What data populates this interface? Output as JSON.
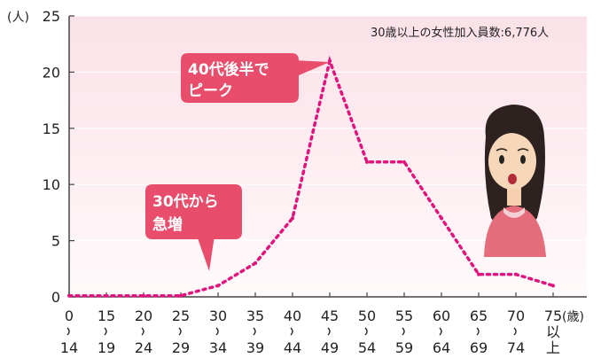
{
  "chart_data": {
    "type": "line",
    "y_unit": "(人)",
    "x_unit": "(歳)",
    "ylim": [
      0,
      25
    ],
    "yticks": [
      "0",
      "5",
      "10",
      "15",
      "20",
      "25"
    ],
    "x_tick_labels": [
      {
        "top": "0",
        "bottom": "14"
      },
      {
        "top": "15",
        "bottom": "19"
      },
      {
        "top": "20",
        "bottom": "24"
      },
      {
        "top": "25",
        "bottom": "29"
      },
      {
        "top": "30",
        "bottom": "34"
      },
      {
        "top": "35",
        "bottom": "39"
      },
      {
        "top": "40",
        "bottom": "44"
      },
      {
        "top": "45",
        "bottom": "49"
      },
      {
        "top": "50",
        "bottom": "54"
      },
      {
        "top": "55",
        "bottom": "59"
      },
      {
        "top": "60",
        "bottom": "64"
      },
      {
        "top": "65",
        "bottom": "69"
      },
      {
        "top": "70",
        "bottom": "74"
      },
      {
        "top": "75",
        "bottom": "以上"
      }
    ],
    "x": [
      0,
      15,
      20,
      25,
      30,
      35,
      40,
      45,
      50,
      55,
      60,
      65,
      70,
      75
    ],
    "values": [
      0.1,
      0.1,
      0.1,
      0.1,
      1,
      3,
      7,
      21,
      12,
      12,
      7,
      2,
      2,
      1
    ],
    "annotation_total": "30歳以上の女性加入員数:6,776人",
    "callouts": [
      {
        "lines": [
          "40代後半で",
          "ピーク"
        ]
      },
      {
        "lines": [
          "30代から",
          "急増"
        ]
      }
    ],
    "colors": {
      "line": "#e0147c",
      "bubble": "#e84e6c",
      "band_top": "#fbe4ea",
      "band_bottom": "#fff6f8"
    }
  }
}
